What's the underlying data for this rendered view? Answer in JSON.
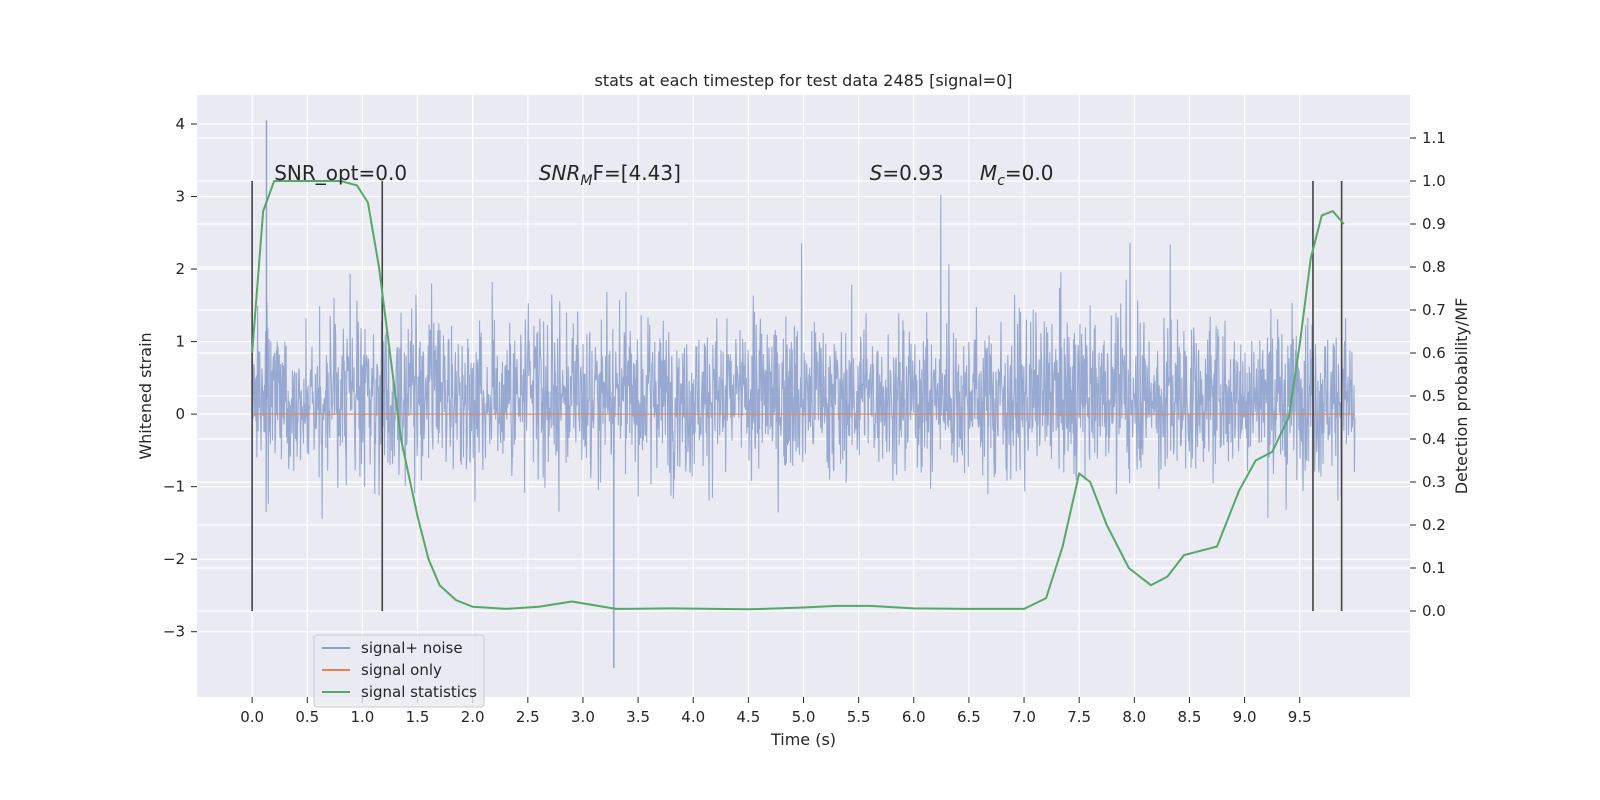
{
  "chart_data": {
    "type": "line",
    "title": "stats at each timestep for test data 2485 [signal=0]",
    "xlabel": "Time (s)",
    "ylabel_left": "Whitened strain",
    "ylabel_right": "Detection probability/MF",
    "xlim": [
      -0.5,
      10.5
    ],
    "ylim_left": [
      -3.9,
      4.4
    ],
    "ylim_right": [
      -0.2,
      1.2
    ],
    "x_ticks": [
      "0.0",
      "0.5",
      "1.0",
      "1.5",
      "2.0",
      "2.5",
      "3.0",
      "3.5",
      "4.0",
      "4.5",
      "5.0",
      "5.5",
      "6.0",
      "6.5",
      "7.0",
      "7.5",
      "8.0",
      "8.5",
      "9.0",
      "9.5"
    ],
    "y_ticks_left": [
      "4",
      "3",
      "2",
      "1",
      "0",
      "−1",
      "−2",
      "−3"
    ],
    "y_ticks_right": [
      "1.1",
      "1.0",
      "0.9",
      "0.8",
      "0.7",
      "0.6",
      "0.5",
      "0.4",
      "0.3",
      "0.2",
      "0.1",
      "0.0"
    ],
    "grid": true,
    "legend_placement": "lower-left",
    "colors": {
      "background": "#eaeaf2",
      "grid": "#ffffff",
      "noise": "#8a9ecb",
      "signal_only": "#dd8452",
      "statistics": "#55a868",
      "vlines": "#444444"
    },
    "annotations": {
      "snr_opt": "SNR_opt=0.0",
      "snr_mf_base": "SNR",
      "snr_mf_sub": "M",
      "snr_mf_tail": "F=[4.43]",
      "s_value_sym": "S",
      "s_value_tail": "=0.93",
      "mc_sym": "M",
      "mc_sub": "c",
      "mc_tail": "=0.0"
    },
    "series": [
      {
        "name": "signal+ noise",
        "axis": "left",
        "style": "dense noise trace",
        "x_range": [
          0.0,
          10.0
        ],
        "envelope_min": -3.5,
        "envelope_max": 4.05,
        "typical_range": [
          -1.0,
          1.5
        ]
      },
      {
        "name": "signal only",
        "axis": "left",
        "x": [
          0.0,
          10.0
        ],
        "y": [
          0.0,
          0.0
        ]
      },
      {
        "name": "signal statistics",
        "axis": "right",
        "x": [
          0.0,
          0.1,
          0.2,
          0.3,
          0.5,
          0.8,
          0.95,
          1.05,
          1.15,
          1.25,
          1.35,
          1.5,
          1.6,
          1.7,
          1.85,
          2.0,
          2.3,
          2.6,
          2.9,
          3.3,
          3.8,
          4.5,
          5.0,
          5.3,
          5.6,
          6.0,
          6.5,
          7.0,
          7.2,
          7.35,
          7.5,
          7.6,
          7.75,
          7.95,
          8.15,
          8.3,
          8.45,
          8.6,
          8.75,
          8.95,
          9.1,
          9.25,
          9.4,
          9.5,
          9.6,
          9.7,
          9.8,
          9.9
        ],
        "y": [
          0.6,
          0.93,
          1.0,
          1.0,
          1.0,
          1.0,
          0.99,
          0.95,
          0.8,
          0.6,
          0.4,
          0.22,
          0.12,
          0.06,
          0.025,
          0.01,
          0.005,
          0.01,
          0.022,
          0.005,
          0.006,
          0.004,
          0.008,
          0.012,
          0.012,
          0.006,
          0.005,
          0.005,
          0.03,
          0.15,
          0.32,
          0.3,
          0.2,
          0.1,
          0.06,
          0.08,
          0.13,
          0.14,
          0.15,
          0.28,
          0.35,
          0.37,
          0.45,
          0.62,
          0.82,
          0.92,
          0.93,
          0.9
        ]
      }
    ],
    "vertical_lines_x": [
      0.0,
      1.18,
      9.62,
      9.88
    ]
  },
  "legend": {
    "items": [
      {
        "label": "signal+ noise",
        "color": "#8a9ecb"
      },
      {
        "label": "signal only",
        "color": "#dd8452"
      },
      {
        "label": "signal statistics",
        "color": "#55a868"
      }
    ]
  }
}
